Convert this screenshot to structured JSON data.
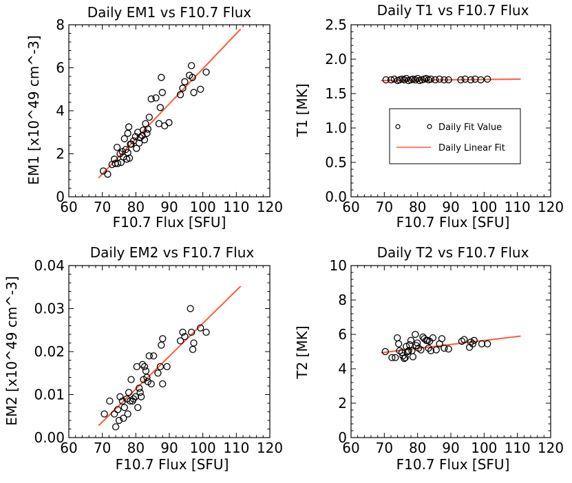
{
  "chart_data": [
    {
      "type": "scatter",
      "title": "Daily EM1 vs F10.7 Flux",
      "xlabel": "F10.7 Flux [SFU]",
      "ylabel": "EM1 [x10^49 cm^-3]",
      "xlim": [
        60,
        120
      ],
      "ylim": [
        0,
        8
      ],
      "xticks": [
        "60",
        "70",
        "80",
        "90",
        "100",
        "110",
        "120"
      ],
      "yticks": [
        "0",
        "2",
        "4",
        "6",
        "8"
      ],
      "series": [
        {
          "name": "Daily Fit Value",
          "points": [
            [
              70.3,
              1.2
            ],
            [
              71.6,
              1.05
            ],
            [
              72.9,
              1.5
            ],
            [
              73.6,
              1.75
            ],
            [
              73.9,
              1.55
            ],
            [
              74.4,
              2.3
            ],
            [
              74.6,
              1.55
            ],
            [
              75.3,
              2.0
            ],
            [
              75.6,
              1.6
            ],
            [
              76.0,
              2.1
            ],
            [
              76.3,
              1.85
            ],
            [
              76.6,
              2.7
            ],
            [
              77.0,
              2.2
            ],
            [
              77.3,
              1.75
            ],
            [
              77.6,
              2.05
            ],
            [
              77.9,
              3.25
            ],
            [
              77.6,
              2.95
            ],
            [
              78.1,
              1.8
            ],
            [
              78.4,
              2.45
            ],
            [
              78.6,
              2.45
            ],
            [
              79.3,
              2.6
            ],
            [
              79.9,
              2.8
            ],
            [
              80.2,
              2.25
            ],
            [
              80.6,
              3.0
            ],
            [
              81.0,
              2.5
            ],
            [
              81.3,
              2.75
            ],
            [
              81.9,
              2.85
            ],
            [
              82.2,
              3.1
            ],
            [
              82.6,
              2.65
            ],
            [
              82.9,
              3.4
            ],
            [
              83.3,
              2.95
            ],
            [
              83.6,
              3.15
            ],
            [
              84.0,
              3.7
            ],
            [
              84.6,
              4.55
            ],
            [
              86.0,
              4.6
            ],
            [
              86.9,
              3.4
            ],
            [
              87.3,
              4.15
            ],
            [
              87.6,
              5.55
            ],
            [
              87.9,
              4.85
            ],
            [
              88.6,
              3.3
            ],
            [
              89.9,
              3.45
            ],
            [
              93.3,
              4.75
            ],
            [
              94.0,
              5.05
            ],
            [
              94.6,
              5.35
            ],
            [
              96.0,
              5.65
            ],
            [
              96.6,
              6.1
            ],
            [
              96.9,
              5.55
            ],
            [
              97.3,
              4.85
            ],
            [
              99.3,
              5.0
            ],
            [
              101.0,
              5.8
            ]
          ]
        },
        {
          "name": "Daily Linear Fit",
          "line": [
            [
              68.9,
              0.88
            ],
            [
              111.3,
              7.8
            ]
          ]
        }
      ]
    },
    {
      "type": "scatter",
      "title": "Daily T1 vs F10.7 Flux",
      "xlabel": "F10.7 Flux [SFU]",
      "ylabel": "T1 [MK]",
      "xlim": [
        60,
        120
      ],
      "ylim": [
        0,
        2.5
      ],
      "xticks": [
        "60",
        "70",
        "80",
        "90",
        "100",
        "110",
        "120"
      ],
      "yticks": [
        "0.0",
        "0.5",
        "1.0",
        "1.5",
        "2.0",
        "2.5"
      ],
      "legend": {
        "placement": "center-right",
        "entries": [
          "Daily Fit Value",
          "Daily Linear Fit"
        ]
      },
      "series": [
        {
          "name": "Daily Fit Value",
          "points": [
            [
              70.5,
              1.7
            ],
            [
              72.0,
              1.7
            ],
            [
              73.0,
              1.71
            ],
            [
              74.0,
              1.69
            ],
            [
              74.6,
              1.7
            ],
            [
              75.3,
              1.71
            ],
            [
              76.0,
              1.7
            ],
            [
              76.6,
              1.72
            ],
            [
              77.3,
              1.69
            ],
            [
              78.0,
              1.7
            ],
            [
              78.6,
              1.71
            ],
            [
              79.3,
              1.7
            ],
            [
              80.0,
              1.72
            ],
            [
              80.6,
              1.69
            ],
            [
              81.3,
              1.7
            ],
            [
              82.0,
              1.71
            ],
            [
              82.6,
              1.72
            ],
            [
              83.3,
              1.7
            ],
            [
              84.0,
              1.71
            ],
            [
              85.3,
              1.7
            ],
            [
              86.6,
              1.71
            ],
            [
              88.0,
              1.7
            ],
            [
              89.3,
              1.7
            ],
            [
              93.0,
              1.7
            ],
            [
              94.3,
              1.71
            ],
            [
              96.0,
              1.7
            ],
            [
              97.3,
              1.71
            ],
            [
              99.0,
              1.7
            ],
            [
              101.0,
              1.71
            ]
          ]
        },
        {
          "name": "Daily Linear Fit",
          "line": [
            [
              69.0,
              1.69
            ],
            [
              111.0,
              1.71
            ]
          ]
        }
      ]
    },
    {
      "type": "scatter",
      "title": "Daily EM2 vs F10.7 Flux",
      "xlabel": "F10.7 Flux [SFU]",
      "ylabel": "EM2 [x10^49 cm^-3]",
      "xlim": [
        60,
        120
      ],
      "ylim": [
        0,
        0.04
      ],
      "xticks": [
        "60",
        "70",
        "80",
        "90",
        "100",
        "110",
        "120"
      ],
      "yticks": [
        "0.00",
        "0.01",
        "0.02",
        "0.03",
        "0.04"
      ],
      "series": [
        {
          "name": "Daily Fit Value",
          "points": [
            [
              70.6,
              0.0055
            ],
            [
              72.2,
              0.0085
            ],
            [
              73.6,
              0.0055
            ],
            [
              74.0,
              0.0025
            ],
            [
              74.6,
              0.0065
            ],
            [
              75.0,
              0.004
            ],
            [
              75.3,
              0.0095
            ],
            [
              76.0,
              0.0085
            ],
            [
              76.3,
              0.0045
            ],
            [
              76.6,
              0.007
            ],
            [
              77.3,
              0.009
            ],
            [
              77.6,
              0.0055
            ],
            [
              77.9,
              0.0105
            ],
            [
              78.3,
              0.0085
            ],
            [
              78.6,
              0.0135
            ],
            [
              79.0,
              0.0085
            ],
            [
              79.3,
              0.009
            ],
            [
              79.9,
              0.0095
            ],
            [
              80.3,
              0.0165
            ],
            [
              80.6,
              0.007
            ],
            [
              81.0,
              0.0115
            ],
            [
              81.3,
              0.0105
            ],
            [
              81.6,
              0.0095
            ],
            [
              82.0,
              0.017
            ],
            [
              82.3,
              0.0135
            ],
            [
              82.6,
              0.0165
            ],
            [
              83.0,
              0.0155
            ],
            [
              83.3,
              0.014
            ],
            [
              83.6,
              0.013
            ],
            [
              84.0,
              0.019
            ],
            [
              84.6,
              0.0125
            ],
            [
              85.3,
              0.019
            ],
            [
              86.6,
              0.015
            ],
            [
              87.3,
              0.0165
            ],
            [
              87.6,
              0.0215
            ],
            [
              88.0,
              0.023
            ],
            [
              88.0,
              0.0125
            ],
            [
              89.3,
              0.0165
            ],
            [
              93.3,
              0.0225
            ],
            [
              94.0,
              0.0245
            ],
            [
              94.6,
              0.0235
            ],
            [
              96.3,
              0.03
            ],
            [
              96.6,
              0.0245
            ],
            [
              97.0,
              0.0205
            ],
            [
              97.3,
              0.022
            ],
            [
              99.3,
              0.0255
            ],
            [
              101.0,
              0.0245
            ]
          ]
        },
        {
          "name": "Daily Linear Fit",
          "line": [
            [
              68.9,
              0.0028
            ],
            [
              111.3,
              0.0352
            ]
          ]
        }
      ]
    },
    {
      "type": "scatter",
      "title": "Daily T2 vs F10.7 Flux",
      "xlabel": "F10.7 Flux [SFU]",
      "ylabel": "T2 [MK]",
      "xlim": [
        60,
        120
      ],
      "ylim": [
        0,
        10
      ],
      "xticks": [
        "60",
        "70",
        "80",
        "90",
        "100",
        "110",
        "120"
      ],
      "yticks": [
        "0",
        "2",
        "4",
        "6",
        "8",
        "10"
      ],
      "series": [
        {
          "name": "Daily Fit Value",
          "points": [
            [
              70.3,
              5.0
            ],
            [
              72.3,
              4.65
            ],
            [
              73.3,
              4.65
            ],
            [
              73.9,
              5.8
            ],
            [
              74.3,
              5.45
            ],
            [
              74.6,
              5.05
            ],
            [
              75.3,
              4.95
            ],
            [
              75.6,
              4.75
            ],
            [
              76.0,
              4.6
            ],
            [
              76.3,
              4.65
            ],
            [
              76.6,
              5.3
            ],
            [
              77.0,
              5.0
            ],
            [
              77.3,
              5.05
            ],
            [
              77.6,
              5.4
            ],
            [
              78.0,
              5.65
            ],
            [
              78.3,
              5.05
            ],
            [
              78.6,
              4.7
            ],
            [
              79.3,
              6.0
            ],
            [
              79.6,
              5.35
            ],
            [
              79.9,
              5.5
            ],
            [
              80.3,
              5.2
            ],
            [
              81.0,
              5.1
            ],
            [
              81.6,
              5.85
            ],
            [
              82.0,
              5.75
            ],
            [
              82.6,
              5.65
            ],
            [
              83.0,
              5.65
            ],
            [
              83.3,
              5.2
            ],
            [
              83.6,
              5.6
            ],
            [
              84.0,
              5.05
            ],
            [
              84.6,
              5.8
            ],
            [
              85.6,
              5.1
            ],
            [
              86.6,
              5.45
            ],
            [
              87.3,
              5.75
            ],
            [
              88.0,
              5.2
            ],
            [
              89.3,
              5.15
            ],
            [
              93.3,
              5.6
            ],
            [
              94.0,
              5.7
            ],
            [
              95.6,
              5.25
            ],
            [
              96.0,
              5.55
            ],
            [
              96.6,
              5.45
            ],
            [
              97.0,
              5.65
            ],
            [
              99.3,
              5.45
            ],
            [
              101.0,
              5.45
            ]
          ]
        },
        {
          "name": "Daily Linear Fit",
          "line": [
            [
              69.0,
              4.93
            ],
            [
              111.0,
              5.9
            ]
          ]
        }
      ]
    }
  ],
  "colors": {
    "fit_line": "#ff5a3c",
    "marker": "#000000",
    "axes": "#000000"
  }
}
